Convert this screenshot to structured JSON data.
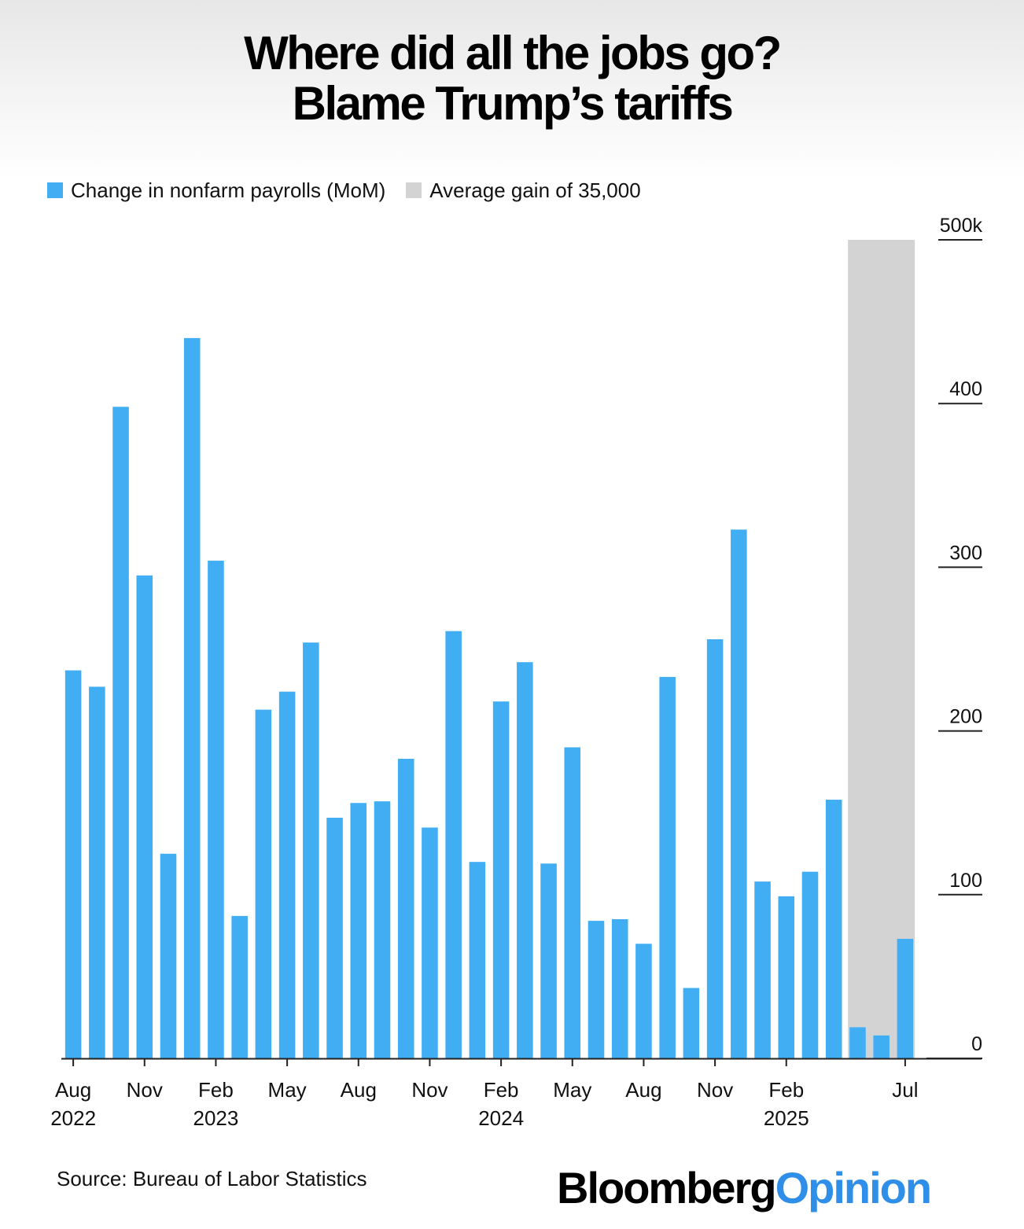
{
  "title_lines": [
    "Where did all the jobs go?",
    "Blame Trump’s tariffs"
  ],
  "legend": [
    {
      "label": "Change in nonfarm payrolls (MoM)",
      "color": "#41adf3"
    },
    {
      "label": "Average gain of 35,000",
      "color": "#d3d3d3"
    }
  ],
  "source": "Source: Bureau of Labor Statistics",
  "brand": {
    "part1": "Bloomberg",
    "part2": "Opinion",
    "color1": "#000000",
    "color2": "#2f8fe8"
  },
  "chart_data": {
    "type": "bar",
    "title": "Where did all the jobs go? Blame Trump’s tariffs",
    "xlabel": "",
    "ylabel": "",
    "ylim": [
      0,
      500
    ],
    "y_unit": "k",
    "series": [
      {
        "name": "Change in nonfarm payrolls (MoM)",
        "color": "#41adf3",
        "values": [
          237,
          227,
          398,
          295,
          125,
          440,
          304,
          87,
          213,
          224,
          254,
          147,
          156,
          157,
          183,
          141,
          261,
          120,
          218,
          242,
          119,
          190,
          84,
          85,
          70,
          233,
          43,
          256,
          323,
          108,
          99,
          114,
          158,
          19,
          14,
          73
        ]
      }
    ],
    "categories": [
      "Aug 2022",
      "Sep 2022",
      "Oct 2022",
      "Nov 2022",
      "Dec 2022",
      "Jan 2023",
      "Feb 2023",
      "Mar 2023",
      "Apr 2023",
      "May 2023",
      "Jun 2023",
      "Jul 2023",
      "Aug 2023",
      "Sep 2023",
      "Oct 2023",
      "Nov 2023",
      "Dec 2023",
      "Jan 2024",
      "Feb 2024",
      "Mar 2024",
      "Apr 2024",
      "May 2024",
      "Jun 2024",
      "Jul 2024",
      "Aug 2024",
      "Sep 2024",
      "Oct 2024",
      "Nov 2024",
      "Dec 2024",
      "Jan 2025",
      "Feb 2025",
      "Mar 2025",
      "Apr 2025",
      "May 2025",
      "Jun 2025",
      "Jul 2025"
    ],
    "highlight": {
      "label": "Average gain of 35,000",
      "color": "#d3d3d3",
      "from_index": 33,
      "to_index": 35,
      "ymax": 500
    },
    "y_ticks": [
      {
        "value": 0,
        "label": "0"
      },
      {
        "value": 100,
        "label": "100"
      },
      {
        "value": 200,
        "label": "200"
      },
      {
        "value": 300,
        "label": "300"
      },
      {
        "value": 400,
        "label": "400"
      },
      {
        "value": 500,
        "label": "500k"
      }
    ],
    "x_ticks": [
      {
        "index": 0,
        "line1": "Aug",
        "line2": "2022"
      },
      {
        "index": 3,
        "line1": "Nov",
        "line2": ""
      },
      {
        "index": 6,
        "line1": "Feb",
        "line2": "2023"
      },
      {
        "index": 9,
        "line1": "May",
        "line2": ""
      },
      {
        "index": 12,
        "line1": "Aug",
        "line2": ""
      },
      {
        "index": 15,
        "line1": "Nov",
        "line2": ""
      },
      {
        "index": 18,
        "line1": "Feb",
        "line2": "2024"
      },
      {
        "index": 21,
        "line1": "May",
        "line2": ""
      },
      {
        "index": 24,
        "line1": "Aug",
        "line2": ""
      },
      {
        "index": 27,
        "line1": "Nov",
        "line2": ""
      },
      {
        "index": 30,
        "line1": "Feb",
        "line2": "2025"
      },
      {
        "index": 35,
        "line1": "Jul",
        "line2": ""
      }
    ]
  }
}
